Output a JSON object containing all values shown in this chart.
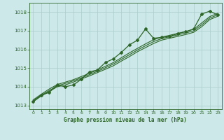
{
  "title": "Graphe pression niveau de la mer (hPa)",
  "bg_color": "#cce8e8",
  "grid_color": "#aacccc",
  "line_color": "#2d6628",
  "text_color": "#2d6628",
  "xlim": [
    -0.5,
    23.5
  ],
  "ylim": [
    1012.8,
    1018.5
  ],
  "yticks": [
    1013,
    1014,
    1015,
    1016,
    1017,
    1018
  ],
  "xticks": [
    0,
    1,
    2,
    3,
    4,
    5,
    6,
    7,
    8,
    9,
    10,
    11,
    12,
    13,
    14,
    15,
    16,
    17,
    18,
    19,
    20,
    21,
    22,
    23
  ],
  "hours": [
    0,
    1,
    2,
    3,
    4,
    5,
    6,
    7,
    8,
    9,
    10,
    11,
    12,
    13,
    14,
    15,
    16,
    17,
    18,
    19,
    20,
    21,
    22,
    23
  ],
  "pressure_main": [
    1013.2,
    1013.55,
    1013.7,
    1014.1,
    1014.0,
    1014.1,
    1014.4,
    1014.8,
    1014.9,
    1015.3,
    1015.5,
    1015.85,
    1016.25,
    1016.5,
    1017.1,
    1016.6,
    1016.65,
    1016.7,
    1016.85,
    1016.95,
    1017.1,
    1017.9,
    1018.05,
    1017.85
  ],
  "pressure_smooth1": [
    1013.2,
    1013.5,
    1013.75,
    1014.0,
    1014.1,
    1014.25,
    1014.42,
    1014.58,
    1014.76,
    1014.94,
    1015.13,
    1015.38,
    1015.62,
    1015.88,
    1016.1,
    1016.32,
    1016.5,
    1016.6,
    1016.7,
    1016.8,
    1016.92,
    1017.22,
    1017.6,
    1017.78
  ],
  "pressure_smooth2": [
    1013.25,
    1013.55,
    1013.8,
    1014.05,
    1014.18,
    1014.32,
    1014.48,
    1014.65,
    1014.83,
    1015.02,
    1015.22,
    1015.47,
    1015.72,
    1015.97,
    1016.2,
    1016.42,
    1016.58,
    1016.68,
    1016.78,
    1016.88,
    1017.0,
    1017.32,
    1017.68,
    1017.86
  ],
  "pressure_smooth3": [
    1013.3,
    1013.6,
    1013.88,
    1014.12,
    1014.25,
    1014.38,
    1014.55,
    1014.72,
    1014.9,
    1015.1,
    1015.3,
    1015.56,
    1015.82,
    1016.06,
    1016.3,
    1016.52,
    1016.66,
    1016.76,
    1016.86,
    1016.96,
    1017.08,
    1017.42,
    1017.76,
    1017.94
  ]
}
